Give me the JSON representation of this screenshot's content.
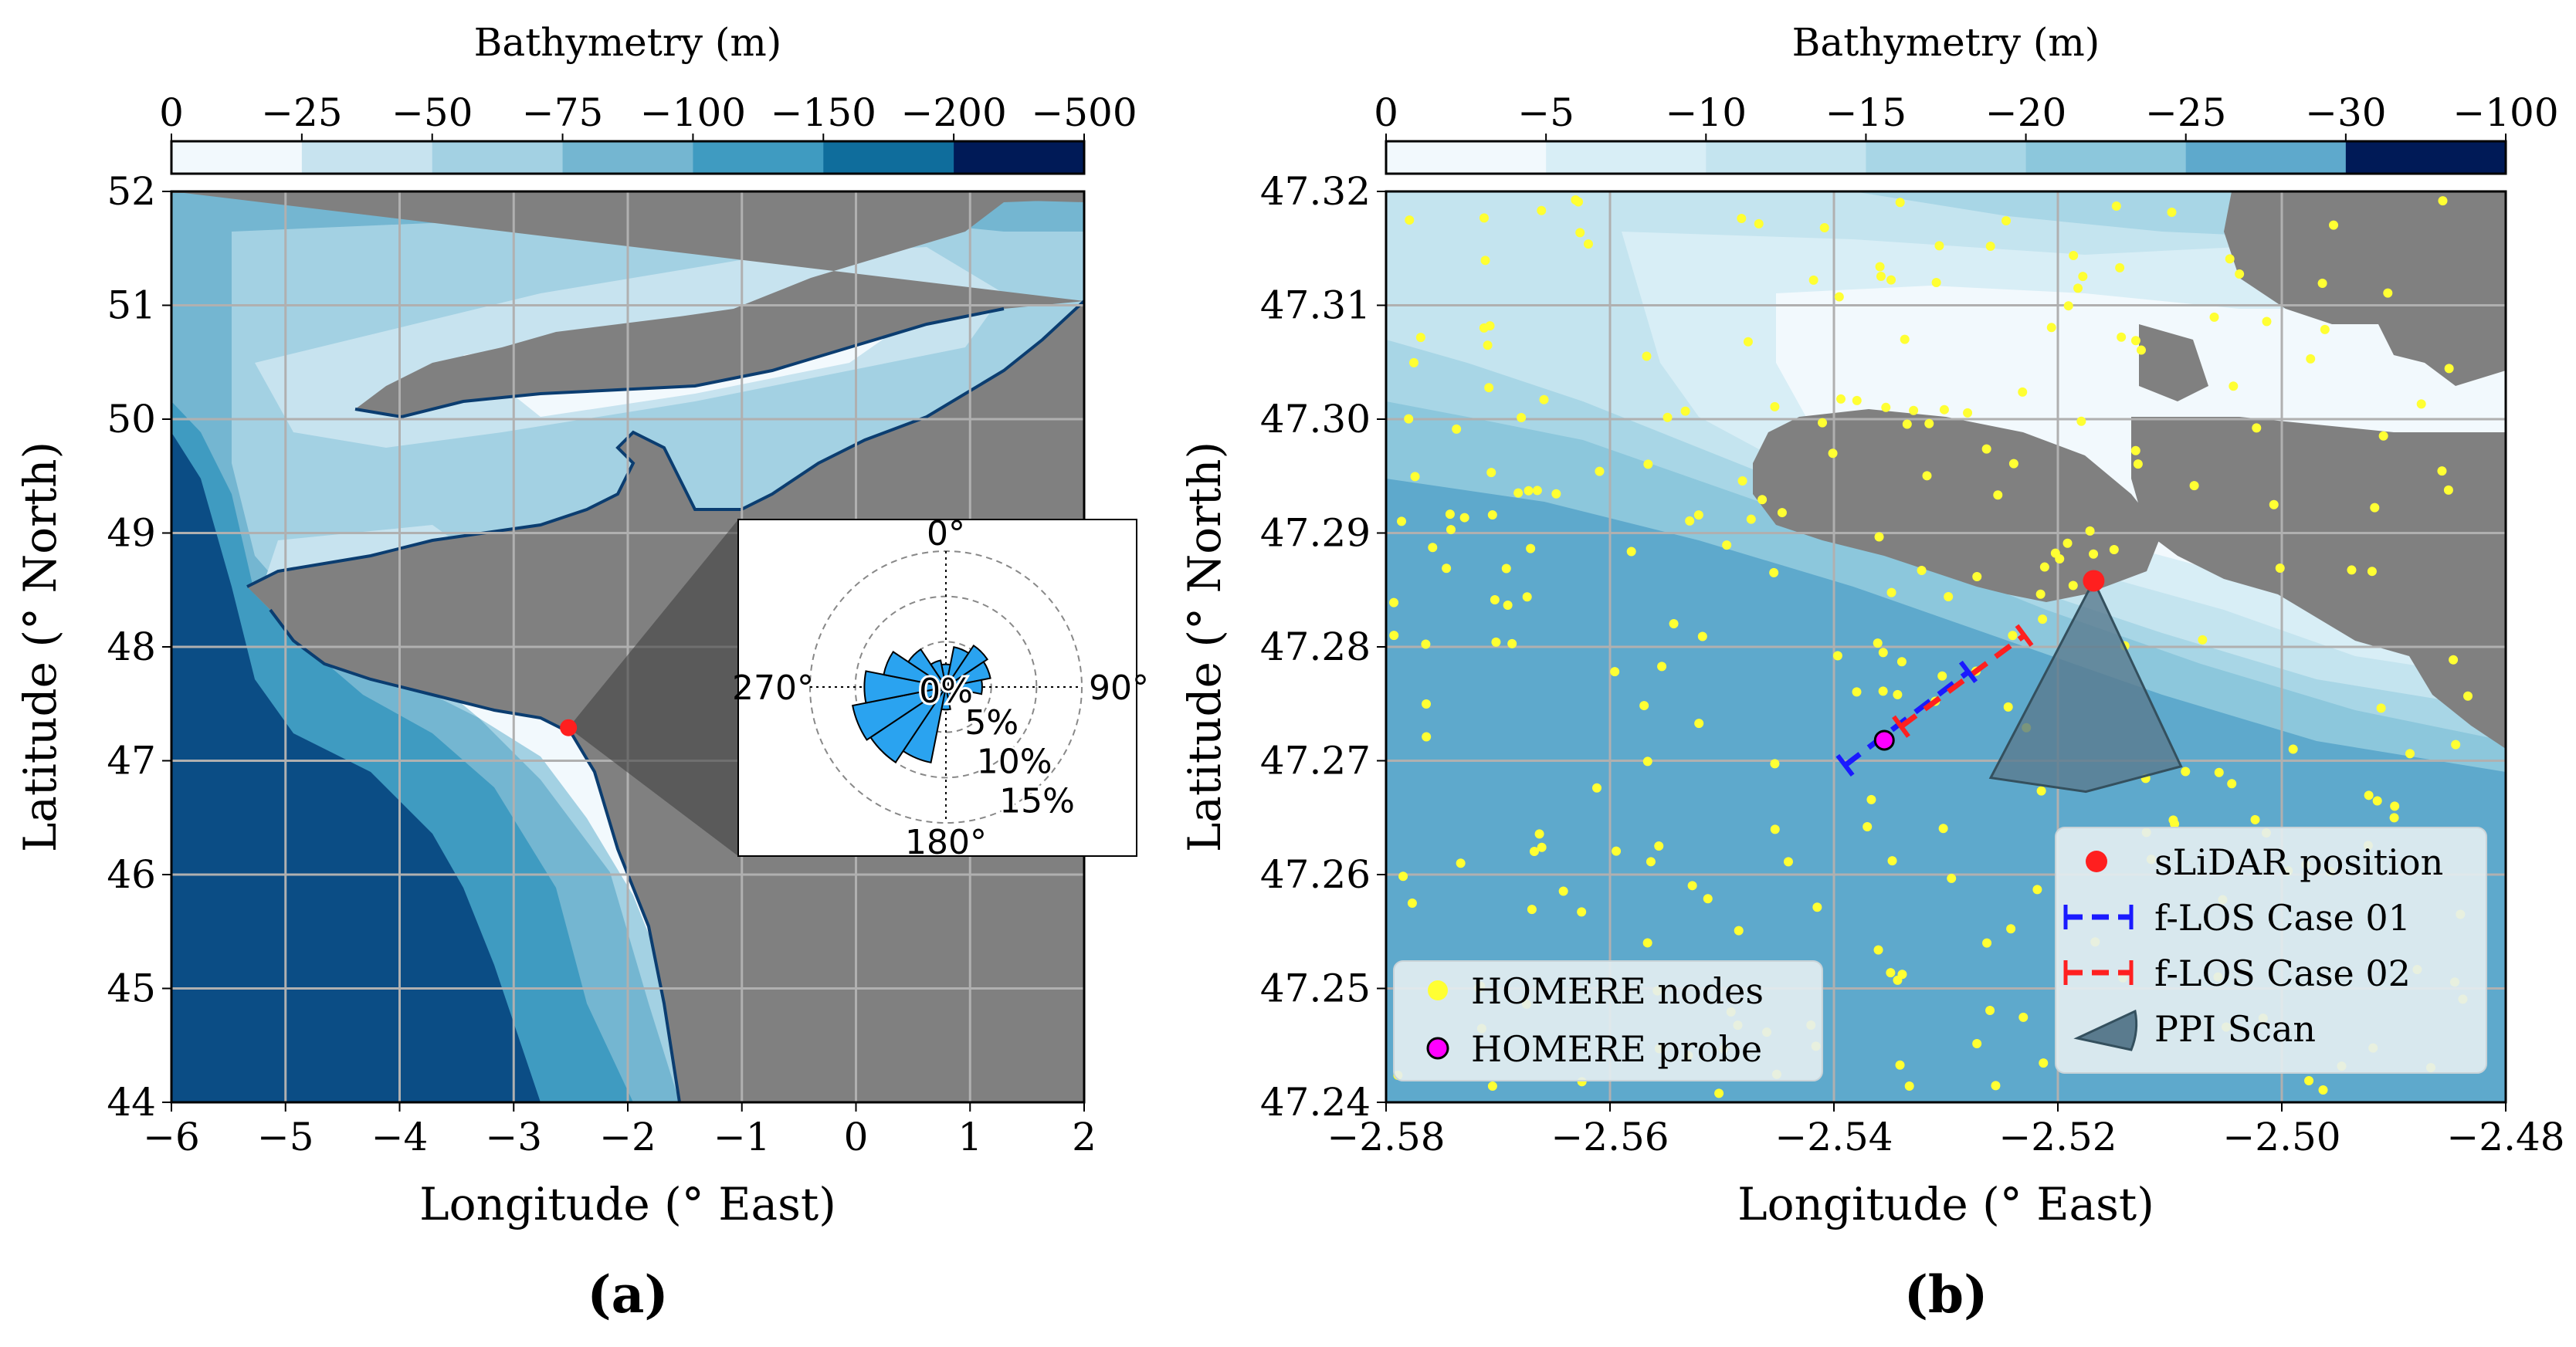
{
  "panel_a": {
    "label": "(a)",
    "colorbar": {
      "title": "Bathymetry (m)",
      "ticks": [
        "0",
        "−25",
        "−50",
        "−75",
        "−100",
        "−150",
        "−200",
        "−500"
      ],
      "colors": [
        "#f2f9fd",
        "#c7e3ef",
        "#a3d1e3",
        "#74b6d1",
        "#3f9bc1",
        "#0f6d9c",
        "#001a57"
      ]
    },
    "xlabel": "Longitude (° East)",
    "ylabel": "Latitude (° North)",
    "xlim": [
      -6,
      2
    ],
    "ylim": [
      44,
      52
    ],
    "xticks": [
      -6,
      -5,
      -4,
      -3,
      -2,
      -1,
      0,
      1,
      2
    ],
    "yticks": [
      44,
      45,
      46,
      47,
      48,
      49,
      50,
      51,
      52
    ],
    "site": {
      "lon": -2.52,
      "lat": 47.29,
      "color": "#ff1f1f"
    },
    "land_color": "#808080",
    "wind_rose": {
      "direction_labels": [
        "0°",
        "90°",
        "180°",
        "270°"
      ],
      "radial_labels": [
        "0%",
        "5%",
        "10%",
        "15%"
      ],
      "radial_values": [
        0,
        5,
        10,
        15
      ],
      "bar_color": "#2aa3f0",
      "sectors_deg": [
        0,
        22.5,
        45,
        67.5,
        90,
        112.5,
        135,
        157.5,
        180,
        202.5,
        225,
        247.5,
        270,
        292.5,
        315,
        337.5
      ],
      "frequencies_pct": [
        2.5,
        4.5,
        5.5,
        5.0,
        4.0,
        2.0,
        1.5,
        1.5,
        2.5,
        8.5,
        10.0,
        10.5,
        9.0,
        7.0,
        5.0,
        3.0
      ]
    }
  },
  "panel_b": {
    "label": "(b)",
    "colorbar": {
      "title": "Bathymetry (m)",
      "ticks": [
        "0",
        "−5",
        "−10",
        "−15",
        "−20",
        "−25",
        "−30",
        "−100"
      ],
      "colors": [
        "#f2f9fd",
        "#d8eef6",
        "#c4e4ef",
        "#a8d6e6",
        "#8cc7dc",
        "#5ea9cc",
        "#001a57"
      ]
    },
    "xlabel": "Longitude (° East)",
    "ylabel": "Latitude (° North)",
    "xlim": [
      -2.58,
      -2.48
    ],
    "ylim": [
      47.24,
      47.32
    ],
    "xticks": [
      "−2.58",
      "−2.56",
      "−2.54",
      "−2.52",
      "−2.50",
      "−2.48"
    ],
    "yticks": [
      "47.24",
      "47.25",
      "47.26",
      "47.27",
      "47.28",
      "47.29",
      "47.30",
      "47.31",
      "47.32"
    ],
    "slidar": {
      "lon": -2.5168,
      "lat": 47.2858,
      "color": "#ff1f1f"
    },
    "probe": {
      "lon": -2.5355,
      "lat": 47.2718,
      "color": "#ff00ff"
    },
    "flos_case01": {
      "from": [
        -2.539,
        47.2696
      ],
      "to": [
        -2.528,
        47.2778
      ],
      "color": "#1a1aff"
    },
    "flos_case02": {
      "from": [
        -2.534,
        47.273
      ],
      "to": [
        -2.523,
        47.281
      ],
      "color": "#ff2020"
    },
    "ppi_scan": {
      "apex": [
        -2.5168,
        47.2858
      ],
      "left": [
        -2.526,
        47.2685
      ],
      "right": [
        -2.509,
        47.2695
      ],
      "color": "#5a7b8e"
    },
    "homere_nodes_color": "#ffff33",
    "legend_left": [
      {
        "label": "HOMERE nodes"
      },
      {
        "label": "HOMERE probe"
      }
    ],
    "legend_right": [
      {
        "label": "sLiDAR position"
      },
      {
        "label": "f-LOS Case 01"
      },
      {
        "label": "f-LOS Case 02"
      },
      {
        "label": "PPI Scan"
      }
    ]
  }
}
